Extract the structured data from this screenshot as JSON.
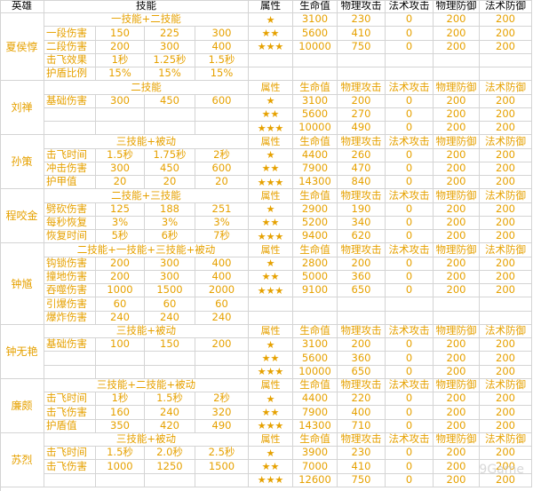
{
  "header": [
    "英雄",
    "技能",
    "属性",
    "生命值",
    "物理攻击",
    "法术攻击",
    "物理防御",
    "法术防御"
  ],
  "heroes": [
    {
      "name": "夏侯惇",
      "rows": [
        {
          "skill": "",
          "v": [],
          "section": "一技能+二技能",
          "attr": "★",
          "hp": "3100",
          "patk": "230",
          "matk": "0",
          "pdef": "200",
          "mdef": "200"
        },
        {
          "skill": "一段伤害",
          "v": [
            "150",
            "225",
            "300"
          ],
          "attr": "★★",
          "hp": "5600",
          "patk": "410",
          "matk": "0",
          "pdef": "200",
          "mdef": "200"
        },
        {
          "skill": "二段伤害",
          "v": [
            "200",
            "300",
            "400"
          ],
          "attr": "★★★",
          "hp": "10000",
          "patk": "750",
          "matk": "0",
          "pdef": "200",
          "mdef": "200"
        },
        {
          "skill": "击飞效果",
          "v": [
            "1秒",
            "1.25秒",
            "1.5秒"
          ],
          "attr": "",
          "hp": "",
          "patk": "",
          "matk": "",
          "pdef": "",
          "mdef": ""
        },
        {
          "skill": "护盾比例",
          "v": [
            "15%",
            "15%",
            "15%"
          ],
          "attr": "",
          "hp": "",
          "patk": "",
          "matk": "",
          "pdef": "",
          "mdef": ""
        }
      ]
    },
    {
      "name": "刘禅",
      "rows": [
        {
          "skill": "",
          "v": [],
          "section": "二技能",
          "attr": "属性",
          "hp": "生命值",
          "patk": "物理攻击",
          "matk": "法术攻击",
          "pdef": "物理防御",
          "mdef": "法术防御"
        },
        {
          "skill": "基础伤害",
          "v": [
            "300",
            "450",
            "600"
          ],
          "attr": "★",
          "hp": "3100",
          "patk": "200",
          "matk": "0",
          "pdef": "200",
          "mdef": "200"
        },
        {
          "skill": "",
          "v": [],
          "attr": "★★",
          "hp": "5600",
          "patk": "270",
          "matk": "0",
          "pdef": "200",
          "mdef": "200"
        },
        {
          "skill": "",
          "v": [],
          "attr": "★★★",
          "hp": "10000",
          "patk": "490",
          "matk": "0",
          "pdef": "200",
          "mdef": "200"
        }
      ]
    },
    {
      "name": "孙策",
      "rows": [
        {
          "skill": "",
          "v": [],
          "section": "三技能+被动",
          "attr": "属性",
          "hp": "生命值",
          "patk": "物理攻击",
          "matk": "法术攻击",
          "pdef": "物理防御",
          "mdef": "法术防御"
        },
        {
          "skill": "击飞时间",
          "v": [
            "1.5秒",
            "1.75秒",
            "2秒"
          ],
          "attr": "★",
          "hp": "4400",
          "patk": "260",
          "matk": "0",
          "pdef": "200",
          "mdef": "200"
        },
        {
          "skill": "冲击伤害",
          "v": [
            "300",
            "450",
            "600"
          ],
          "attr": "★★",
          "hp": "7900",
          "patk": "470",
          "matk": "0",
          "pdef": "200",
          "mdef": "200"
        },
        {
          "skill": "护甲值",
          "v": [
            "20",
            "20",
            "20"
          ],
          "attr": "★★★",
          "hp": "14300",
          "patk": "840",
          "matk": "0",
          "pdef": "200",
          "mdef": "200"
        }
      ]
    },
    {
      "name": "程咬金",
      "rows": [
        {
          "skill": "",
          "v": [],
          "section": "二技能+三技能",
          "attr": "属性",
          "hp": "生命值",
          "patk": "物理攻击",
          "matk": "法术攻击",
          "pdef": "物理防御",
          "mdef": "法术防御"
        },
        {
          "skill": "劈砍伤害",
          "v": [
            "125",
            "188",
            "251"
          ],
          "attr": "★",
          "hp": "2900",
          "patk": "190",
          "matk": "0",
          "pdef": "200",
          "mdef": "200"
        },
        {
          "skill": "每秒恢复",
          "v": [
            "3%",
            "3%",
            "3%"
          ],
          "attr": "★★",
          "hp": "5200",
          "patk": "340",
          "matk": "0",
          "pdef": "200",
          "mdef": "200"
        },
        {
          "skill": "恢复时间",
          "v": [
            "5秒",
            "6秒",
            "7秒"
          ],
          "attr": "★★★",
          "hp": "9400",
          "patk": "620",
          "matk": "0",
          "pdef": "200",
          "mdef": "200"
        }
      ]
    },
    {
      "name": "钟馗",
      "rows": [
        {
          "skill": "",
          "v": [],
          "section": "二技能+一技能+三技能+被动",
          "attr": "属性",
          "hp": "生命值",
          "patk": "物理攻击",
          "matk": "法术攻击",
          "pdef": "物理防御",
          "mdef": "法术防御"
        },
        {
          "skill": "钩锁伤害",
          "v": [
            "200",
            "300",
            "400"
          ],
          "attr": "★",
          "hp": "2800",
          "patk": "200",
          "matk": "0",
          "pdef": "200",
          "mdef": "200"
        },
        {
          "skill": "撞地伤害",
          "v": [
            "200",
            "300",
            "400"
          ],
          "attr": "★★",
          "hp": "5000",
          "patk": "360",
          "matk": "0",
          "pdef": "200",
          "mdef": "200"
        },
        {
          "skill": "吞噬伤害",
          "v": [
            "1000",
            "1500",
            "2000"
          ],
          "attr": "★★★",
          "hp": "9100",
          "patk": "650",
          "matk": "0",
          "pdef": "200",
          "mdef": "200"
        },
        {
          "skill": "引爆伤害",
          "v": [
            "60",
            "60",
            "60"
          ],
          "attr": "",
          "hp": "",
          "patk": "",
          "matk": "",
          "pdef": "",
          "mdef": ""
        },
        {
          "skill": "爆炸伤害",
          "v": [
            "240",
            "240",
            "240"
          ],
          "attr": "",
          "hp": "",
          "patk": "",
          "matk": "",
          "pdef": "",
          "mdef": ""
        }
      ]
    },
    {
      "name": "钟无艳",
      "rows": [
        {
          "skill": "",
          "v": [],
          "section": "三技能+被动",
          "attr": "属性",
          "hp": "生命值",
          "patk": "物理攻击",
          "matk": "法术攻击",
          "pdef": "物理防御",
          "mdef": "法术防御"
        },
        {
          "skill": "基础伤害",
          "v": [
            "100",
            "150",
            "200"
          ],
          "attr": "★",
          "hp": "3100",
          "patk": "200",
          "matk": "0",
          "pdef": "200",
          "mdef": "200"
        },
        {
          "skill": "",
          "v": [],
          "attr": "★★",
          "hp": "5600",
          "patk": "360",
          "matk": "0",
          "pdef": "200",
          "mdef": "200"
        },
        {
          "skill": "",
          "v": [],
          "attr": "★★★",
          "hp": "10000",
          "patk": "650",
          "matk": "0",
          "pdef": "200",
          "mdef": "200"
        }
      ]
    },
    {
      "name": "廉颇",
      "rows": [
        {
          "skill": "",
          "v": [],
          "section": "三技能+二技能+被动",
          "attr": "属性",
          "hp": "生命值",
          "patk": "物理攻击",
          "matk": "法术攻击",
          "pdef": "物理防御",
          "mdef": "法术防御"
        },
        {
          "skill": "击飞时间",
          "v": [
            "1秒",
            "1.5秒",
            "2秒"
          ],
          "attr": "★",
          "hp": "4400",
          "patk": "220",
          "matk": "0",
          "pdef": "200",
          "mdef": "200"
        },
        {
          "skill": "击飞伤害",
          "v": [
            "160",
            "240",
            "320"
          ],
          "attr": "★★",
          "hp": "7900",
          "patk": "400",
          "matk": "0",
          "pdef": "200",
          "mdef": "200"
        },
        {
          "skill": "护盾值",
          "v": [
            "350",
            "420",
            "490"
          ],
          "attr": "★★★",
          "hp": "14300",
          "patk": "710",
          "matk": "0",
          "pdef": "200",
          "mdef": "200"
        }
      ]
    },
    {
      "name": "苏烈",
      "rows": [
        {
          "skill": "",
          "v": [],
          "section": "三技能+被动",
          "attr": "属性",
          "hp": "生命值",
          "patk": "物理攻击",
          "matk": "法术攻击",
          "pdef": "物理防御",
          "mdef": "法术防御"
        },
        {
          "skill": "击飞时间",
          "v": [
            "1.5秒",
            "2.0秒",
            "2.5秒"
          ],
          "attr": "★",
          "hp": "3900",
          "patk": "230",
          "matk": "0",
          "pdef": "200",
          "mdef": "200"
        },
        {
          "skill": "击飞伤害",
          "v": [
            "1000",
            "1250",
            "1500"
          ],
          "attr": "★★",
          "hp": "7000",
          "patk": "410",
          "matk": "0",
          "pdef": "200",
          "mdef": "200"
        },
        {
          "skill": "",
          "v": [],
          "attr": "★★★",
          "hp": "12600",
          "patk": "750",
          "matk": "0",
          "pdef": "200",
          "mdef": "200"
        }
      ]
    }
  ],
  "watermark": "9Game"
}
